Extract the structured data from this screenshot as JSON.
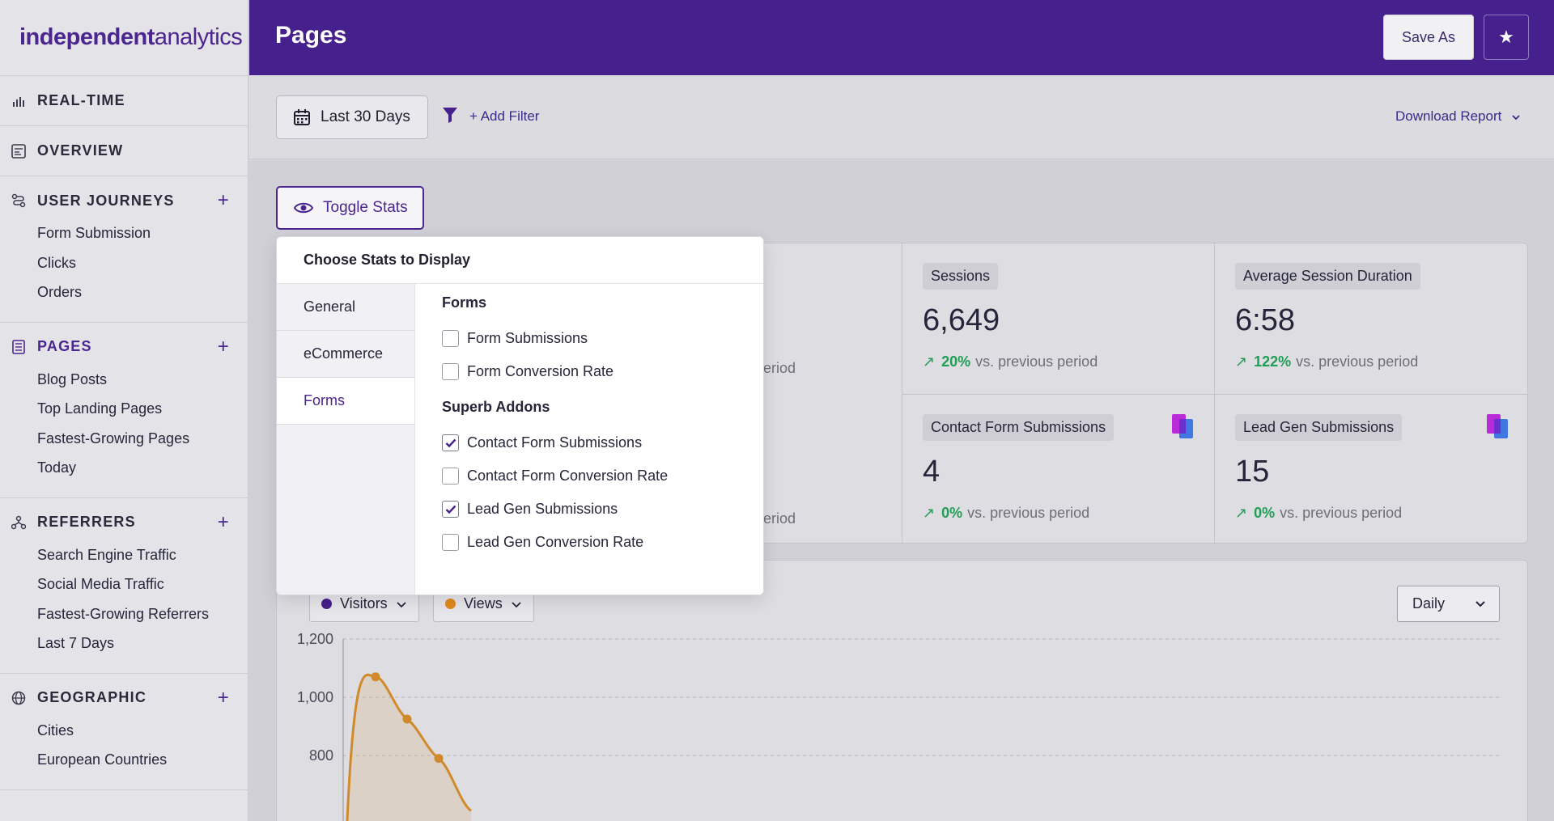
{
  "app": {
    "logo_bold": "independent",
    "logo_light": " analytics"
  },
  "sidebar": {
    "sections": [
      {
        "label": "REAL-TIME",
        "icon": "bar-chart-icon",
        "has_add": false,
        "items": []
      },
      {
        "label": "OVERVIEW",
        "icon": "dashboard-icon",
        "has_add": false,
        "items": []
      },
      {
        "label": "USER JOURNEYS",
        "icon": "journey-icon",
        "has_add": true,
        "items": [
          "Form Submission",
          "Clicks",
          "Orders"
        ]
      },
      {
        "label": "PAGES",
        "icon": "page-icon",
        "has_add": true,
        "active": true,
        "items": [
          "Blog Posts",
          "Top Landing Pages",
          "Fastest-Growing Pages",
          "Today"
        ]
      },
      {
        "label": "REFERRERS",
        "icon": "referrers-icon",
        "has_add": true,
        "items": [
          "Search Engine Traffic",
          "Social Media Traffic",
          "Fastest-Growing Referrers",
          "Last 7 Days"
        ]
      },
      {
        "label": "GEOGRAPHIC",
        "icon": "globe-icon",
        "has_add": true,
        "items": [
          "Cities",
          "European Countries"
        ]
      }
    ],
    "add_symbol": "+"
  },
  "header": {
    "title": "Pages",
    "save_as": "Save As",
    "star_symbol": "★"
  },
  "filters": {
    "date_range": "Last 30 Days",
    "add_filter": "+ Add Filter",
    "download": "Download Report"
  },
  "toggle_stats": {
    "label": "Toggle Stats"
  },
  "stats": {
    "partial_top": "eriod",
    "partial_bottom": "eriod",
    "cards": [
      {
        "label": "Sessions",
        "value": "6,649",
        "change": "20%",
        "suffix": "vs. previous period"
      },
      {
        "label": "Average Session Duration",
        "value": "6:58",
        "change": "122%",
        "suffix": "vs. previous period"
      },
      {
        "label": "Contact Form Submissions",
        "value": "4",
        "change": "0%",
        "suffix": "vs. previous period"
      },
      {
        "label": "Lead Gen Submissions",
        "value": "15",
        "change": "0%",
        "suffix": "vs. previous period"
      }
    ]
  },
  "chart": {
    "legend": [
      {
        "label": "Visitors",
        "color": "#46208c"
      },
      {
        "label": "Views",
        "color": "#e08a1e"
      }
    ],
    "interval": "Daily"
  },
  "chart_data": {
    "type": "area",
    "yticks": [
      "1,200",
      "1,000",
      "800"
    ],
    "ylim": [
      600,
      1200
    ],
    "series": [
      {
        "name": "Views",
        "color": "#d18a2b",
        "values": [
          600,
          1070,
          925,
          790,
          610
        ]
      }
    ]
  },
  "popup": {
    "title": "Choose Stats to Display",
    "tabs": [
      {
        "label": "General",
        "active": false
      },
      {
        "label": "eCommerce",
        "active": false
      },
      {
        "label": "Forms",
        "active": true
      }
    ],
    "groups": [
      {
        "title": "Forms",
        "options": [
          {
            "label": "Form Submissions",
            "checked": false
          },
          {
            "label": "Form Conversion Rate",
            "checked": false
          }
        ]
      },
      {
        "title": "Superb Addons",
        "options": [
          {
            "label": "Contact Form Submissions",
            "checked": true
          },
          {
            "label": "Contact Form Conversion Rate",
            "checked": false
          },
          {
            "label": "Lead Gen Submissions",
            "checked": true
          },
          {
            "label": "Lead Gen Conversion Rate",
            "checked": false
          }
        ]
      }
    ]
  }
}
